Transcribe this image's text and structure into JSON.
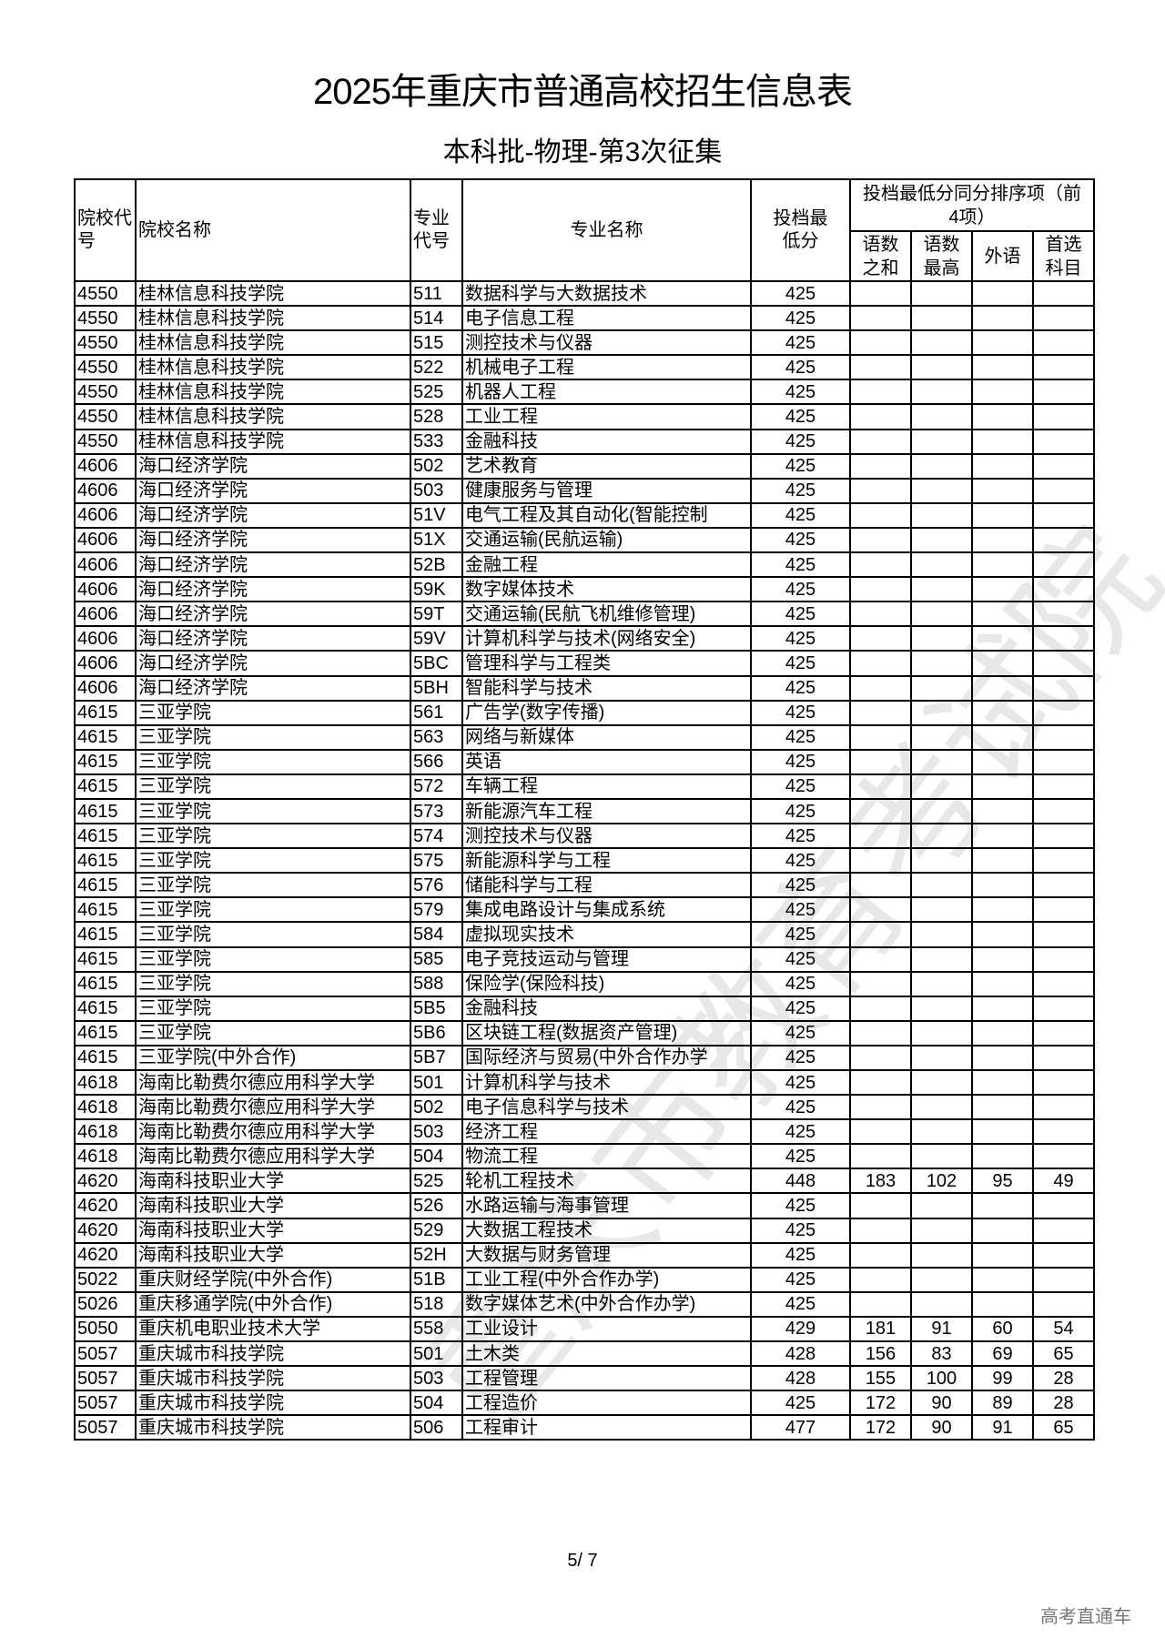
{
  "title": "2025年重庆市普通高校招生信息表",
  "subtitle": "本科批-物理-第3次征集",
  "headers": {
    "school_code": "院校代号",
    "school_name": "院校名称",
    "major_code": "专业代号",
    "major_name": "专业名称",
    "min_score": "投档最低分",
    "tiebreak_group": "投档最低分同分排序项（前4项）",
    "tb_sum": "语数之和",
    "tb_max": "语数最高",
    "tb_foreign": "外语",
    "tb_first": "首选科目"
  },
  "rows": [
    [
      "4550",
      "桂林信息科技学院",
      "511",
      "数据科学与大数据技术",
      "425",
      "",
      "",
      "",
      ""
    ],
    [
      "4550",
      "桂林信息科技学院",
      "514",
      "电子信息工程",
      "425",
      "",
      "",
      "",
      ""
    ],
    [
      "4550",
      "桂林信息科技学院",
      "515",
      "测控技术与仪器",
      "425",
      "",
      "",
      "",
      ""
    ],
    [
      "4550",
      "桂林信息科技学院",
      "522",
      "机械电子工程",
      "425",
      "",
      "",
      "",
      ""
    ],
    [
      "4550",
      "桂林信息科技学院",
      "525",
      "机器人工程",
      "425",
      "",
      "",
      "",
      ""
    ],
    [
      "4550",
      "桂林信息科技学院",
      "528",
      "工业工程",
      "425",
      "",
      "",
      "",
      ""
    ],
    [
      "4550",
      "桂林信息科技学院",
      "533",
      "金融科技",
      "425",
      "",
      "",
      "",
      ""
    ],
    [
      "4606",
      "海口经济学院",
      "502",
      "艺术教育",
      "425",
      "",
      "",
      "",
      ""
    ],
    [
      "4606",
      "海口经济学院",
      "503",
      "健康服务与管理",
      "425",
      "",
      "",
      "",
      ""
    ],
    [
      "4606",
      "海口经济学院",
      "51V",
      "电气工程及其自动化(智能控制",
      "425",
      "",
      "",
      "",
      ""
    ],
    [
      "4606",
      "海口经济学院",
      "51X",
      "交通运输(民航运输)",
      "425",
      "",
      "",
      "",
      ""
    ],
    [
      "4606",
      "海口经济学院",
      "52B",
      "金融工程",
      "425",
      "",
      "",
      "",
      ""
    ],
    [
      "4606",
      "海口经济学院",
      "59K",
      "数字媒体技术",
      "425",
      "",
      "",
      "",
      ""
    ],
    [
      "4606",
      "海口经济学院",
      "59T",
      "交通运输(民航飞机维修管理)",
      "425",
      "",
      "",
      "",
      ""
    ],
    [
      "4606",
      "海口经济学院",
      "59V",
      "计算机科学与技术(网络安全)",
      "425",
      "",
      "",
      "",
      ""
    ],
    [
      "4606",
      "海口经济学院",
      "5BC",
      "管理科学与工程类",
      "425",
      "",
      "",
      "",
      ""
    ],
    [
      "4606",
      "海口经济学院",
      "5BH",
      "智能科学与技术",
      "425",
      "",
      "",
      "",
      ""
    ],
    [
      "4615",
      "三亚学院",
      "561",
      "广告学(数字传播)",
      "425",
      "",
      "",
      "",
      ""
    ],
    [
      "4615",
      "三亚学院",
      "563",
      "网络与新媒体",
      "425",
      "",
      "",
      "",
      ""
    ],
    [
      "4615",
      "三亚学院",
      "566",
      "英语",
      "425",
      "",
      "",
      "",
      ""
    ],
    [
      "4615",
      "三亚学院",
      "572",
      "车辆工程",
      "425",
      "",
      "",
      "",
      ""
    ],
    [
      "4615",
      "三亚学院",
      "573",
      "新能源汽车工程",
      "425",
      "",
      "",
      "",
      ""
    ],
    [
      "4615",
      "三亚学院",
      "574",
      "测控技术与仪器",
      "425",
      "",
      "",
      "",
      ""
    ],
    [
      "4615",
      "三亚学院",
      "575",
      "新能源科学与工程",
      "425",
      "",
      "",
      "",
      ""
    ],
    [
      "4615",
      "三亚学院",
      "576",
      "储能科学与工程",
      "425",
      "",
      "",
      "",
      ""
    ],
    [
      "4615",
      "三亚学院",
      "579",
      "集成电路设计与集成系统",
      "425",
      "",
      "",
      "",
      ""
    ],
    [
      "4615",
      "三亚学院",
      "584",
      "虚拟现实技术",
      "425",
      "",
      "",
      "",
      ""
    ],
    [
      "4615",
      "三亚学院",
      "585",
      "电子竞技运动与管理",
      "425",
      "",
      "",
      "",
      ""
    ],
    [
      "4615",
      "三亚学院",
      "588",
      "保险学(保险科技)",
      "425",
      "",
      "",
      "",
      ""
    ],
    [
      "4615",
      "三亚学院",
      "5B5",
      "金融科技",
      "425",
      "",
      "",
      "",
      ""
    ],
    [
      "4615",
      "三亚学院",
      "5B6",
      "区块链工程(数据资产管理)",
      "425",
      "",
      "",
      "",
      ""
    ],
    [
      "4615",
      "三亚学院(中外合作)",
      "5B7",
      "国际经济与贸易(中外合作办学",
      "425",
      "",
      "",
      "",
      ""
    ],
    [
      "4618",
      "海南比勒费尔德应用科学大学",
      "501",
      "计算机科学与技术",
      "425",
      "",
      "",
      "",
      ""
    ],
    [
      "4618",
      "海南比勒费尔德应用科学大学",
      "502",
      "电子信息科学与技术",
      "425",
      "",
      "",
      "",
      ""
    ],
    [
      "4618",
      "海南比勒费尔德应用科学大学",
      "503",
      "经济工程",
      "425",
      "",
      "",
      "",
      ""
    ],
    [
      "4618",
      "海南比勒费尔德应用科学大学",
      "504",
      "物流工程",
      "425",
      "",
      "",
      "",
      ""
    ],
    [
      "4620",
      "海南科技职业大学",
      "525",
      "轮机工程技术",
      "448",
      "183",
      "102",
      "95",
      "49"
    ],
    [
      "4620",
      "海南科技职业大学",
      "526",
      "水路运输与海事管理",
      "425",
      "",
      "",
      "",
      ""
    ],
    [
      "4620",
      "海南科技职业大学",
      "529",
      "大数据工程技术",
      "425",
      "",
      "",
      "",
      ""
    ],
    [
      "4620",
      "海南科技职业大学",
      "52H",
      "大数据与财务管理",
      "425",
      "",
      "",
      "",
      ""
    ],
    [
      "5022",
      "重庆财经学院(中外合作)",
      "51B",
      "工业工程(中外合作办学)",
      "425",
      "",
      "",
      "",
      ""
    ],
    [
      "5026",
      "重庆移通学院(中外合作)",
      "518",
      "数字媒体艺术(中外合作办学)",
      "425",
      "",
      "",
      "",
      ""
    ],
    [
      "5050",
      "重庆机电职业技术大学",
      "558",
      "工业设计",
      "429",
      "181",
      "91",
      "60",
      "54"
    ],
    [
      "5057",
      "重庆城市科技学院",
      "501",
      "土木类",
      "428",
      "156",
      "83",
      "69",
      "65"
    ],
    [
      "5057",
      "重庆城市科技学院",
      "503",
      "工程管理",
      "428",
      "155",
      "100",
      "99",
      "28"
    ],
    [
      "5057",
      "重庆城市科技学院",
      "504",
      "工程造价",
      "425",
      "172",
      "90",
      "89",
      "28"
    ],
    [
      "5057",
      "重庆城市科技学院",
      "506",
      "工程审计",
      "477",
      "172",
      "90",
      "91",
      "65"
    ]
  ],
  "page_number": "5/ 7",
  "brand_watermark": "高考直通车",
  "diagonal_watermark": "重庆市教育考试院"
}
